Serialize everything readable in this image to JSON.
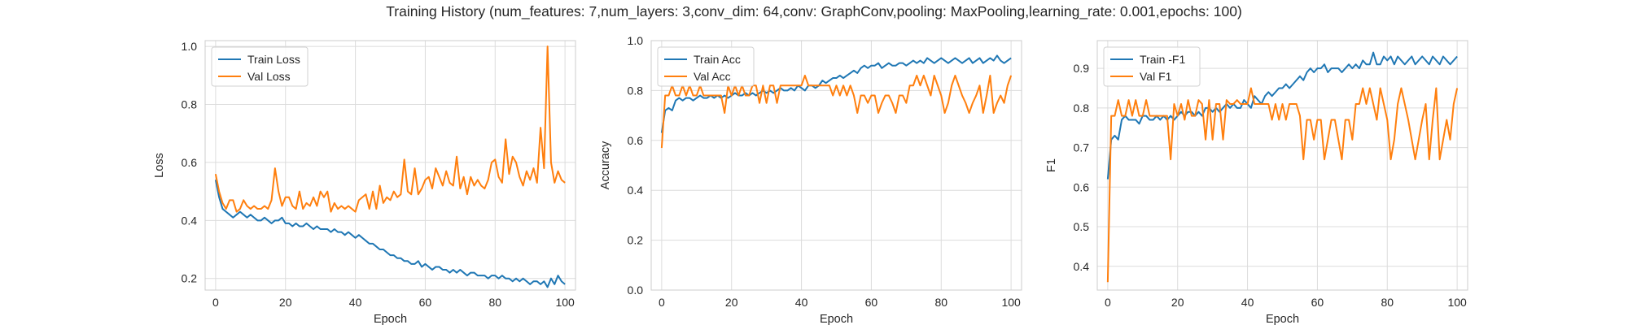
{
  "title": "Training History (num_features: 7,num_layers: 3,conv_dim: 64,conv: GraphConv,pooling: MaxPooling,learning_rate: 0.001,epochs: 100)",
  "colors": {
    "train": "#1f77b4",
    "val": "#ff7f0e",
    "grid": "#dcdcdc",
    "frame": "#cccccc"
  },
  "chart_data": [
    {
      "type": "line",
      "xlabel": "Epoch",
      "ylabel": "Loss",
      "xlim": [
        -3,
        103
      ],
      "ylim": [
        0.16,
        1.02
      ],
      "xticks": [
        0,
        20,
        40,
        60,
        80,
        100
      ],
      "yticks": [
        0.2,
        0.4,
        0.6,
        0.8,
        1.0
      ],
      "ytick_labels": [
        "0.2",
        "0.4",
        "0.6",
        "0.8",
        "1.0"
      ],
      "grid": true,
      "legend": "upper-left",
      "series": [
        {
          "name": "Train Loss",
          "color": "#1f77b4",
          "values": [
            0.54,
            0.48,
            0.44,
            0.43,
            0.42,
            0.41,
            0.42,
            0.43,
            0.42,
            0.41,
            0.42,
            0.41,
            0.4,
            0.4,
            0.41,
            0.4,
            0.39,
            0.4,
            0.4,
            0.41,
            0.39,
            0.39,
            0.38,
            0.39,
            0.38,
            0.38,
            0.39,
            0.38,
            0.37,
            0.38,
            0.37,
            0.37,
            0.37,
            0.36,
            0.37,
            0.36,
            0.36,
            0.35,
            0.36,
            0.35,
            0.34,
            0.35,
            0.34,
            0.33,
            0.32,
            0.32,
            0.31,
            0.3,
            0.3,
            0.29,
            0.28,
            0.28,
            0.27,
            0.27,
            0.26,
            0.26,
            0.25,
            0.25,
            0.26,
            0.24,
            0.25,
            0.24,
            0.23,
            0.24,
            0.24,
            0.23,
            0.23,
            0.22,
            0.23,
            0.22,
            0.23,
            0.22,
            0.21,
            0.22,
            0.22,
            0.21,
            0.21,
            0.21,
            0.2,
            0.21,
            0.21,
            0.2,
            0.21,
            0.2,
            0.2,
            0.19,
            0.2,
            0.19,
            0.2,
            0.19,
            0.18,
            0.19,
            0.19,
            0.18,
            0.19,
            0.17,
            0.2,
            0.18,
            0.21,
            0.19,
            0.18
          ]
        },
        {
          "name": "Val Loss",
          "color": "#ff7f0e",
          "values": [
            0.56,
            0.5,
            0.46,
            0.44,
            0.47,
            0.47,
            0.43,
            0.44,
            0.47,
            0.45,
            0.44,
            0.45,
            0.44,
            0.44,
            0.45,
            0.44,
            0.47,
            0.58,
            0.5,
            0.45,
            0.48,
            0.48,
            0.45,
            0.44,
            0.5,
            0.44,
            0.46,
            0.45,
            0.48,
            0.45,
            0.5,
            0.48,
            0.5,
            0.43,
            0.46,
            0.44,
            0.45,
            0.44,
            0.45,
            0.44,
            0.43,
            0.47,
            0.48,
            0.49,
            0.44,
            0.5,
            0.44,
            0.52,
            0.46,
            0.48,
            0.47,
            0.5,
            0.48,
            0.49,
            0.61,
            0.5,
            0.49,
            0.58,
            0.49,
            0.51,
            0.54,
            0.55,
            0.51,
            0.58,
            0.55,
            0.52,
            0.57,
            0.53,
            0.52,
            0.62,
            0.51,
            0.55,
            0.49,
            0.55,
            0.52,
            0.54,
            0.52,
            0.51,
            0.54,
            0.6,
            0.61,
            0.55,
            0.53,
            0.68,
            0.56,
            0.62,
            0.6,
            0.55,
            0.52,
            0.57,
            0.54,
            0.58,
            0.53,
            0.72,
            0.58,
            1.0,
            0.6,
            0.53,
            0.57,
            0.54,
            0.53
          ]
        }
      ]
    },
    {
      "type": "line",
      "xlabel": "Epoch",
      "ylabel": "Accuracy",
      "xlim": [
        -3,
        103
      ],
      "ylim": [
        0.0,
        1.0
      ],
      "xticks": [
        0,
        20,
        40,
        60,
        80,
        100
      ],
      "yticks": [
        0.0,
        0.2,
        0.4,
        0.6,
        0.8,
        1.0
      ],
      "ytick_labels": [
        "0.0",
        "0.2",
        "0.4",
        "0.6",
        "0.8",
        "1.0"
      ],
      "grid": true,
      "legend": "upper-left",
      "series": [
        {
          "name": "Train Acc",
          "color": "#1f77b4",
          "values": [
            0.63,
            0.72,
            0.73,
            0.72,
            0.76,
            0.77,
            0.76,
            0.77,
            0.77,
            0.76,
            0.77,
            0.78,
            0.77,
            0.77,
            0.78,
            0.77,
            0.78,
            0.77,
            0.78,
            0.77,
            0.78,
            0.79,
            0.78,
            0.78,
            0.79,
            0.78,
            0.79,
            0.78,
            0.79,
            0.8,
            0.79,
            0.8,
            0.79,
            0.8,
            0.81,
            0.8,
            0.8,
            0.81,
            0.8,
            0.82,
            0.81,
            0.8,
            0.82,
            0.82,
            0.81,
            0.82,
            0.84,
            0.83,
            0.84,
            0.85,
            0.85,
            0.86,
            0.85,
            0.86,
            0.87,
            0.88,
            0.87,
            0.89,
            0.9,
            0.89,
            0.9,
            0.9,
            0.91,
            0.89,
            0.9,
            0.91,
            0.9,
            0.9,
            0.91,
            0.91,
            0.9,
            0.91,
            0.92,
            0.91,
            0.92,
            0.91,
            0.93,
            0.92,
            0.91,
            0.92,
            0.93,
            0.92,
            0.91,
            0.92,
            0.93,
            0.92,
            0.91,
            0.92,
            0.93,
            0.91,
            0.92,
            0.93,
            0.91,
            0.92,
            0.93,
            0.92,
            0.94,
            0.92,
            0.91,
            0.92,
            0.93
          ]
        },
        {
          "name": "Val Acc",
          "color": "#ff7f0e",
          "values": [
            0.57,
            0.78,
            0.78,
            0.82,
            0.78,
            0.78,
            0.82,
            0.78,
            0.82,
            0.78,
            0.78,
            0.82,
            0.78,
            0.78,
            0.78,
            0.78,
            0.78,
            0.78,
            0.71,
            0.82,
            0.78,
            0.82,
            0.78,
            0.82,
            0.78,
            0.78,
            0.82,
            0.82,
            0.75,
            0.82,
            0.75,
            0.82,
            0.82,
            0.75,
            0.82,
            0.82,
            0.82,
            0.82,
            0.82,
            0.82,
            0.82,
            0.86,
            0.82,
            0.82,
            0.82,
            0.82,
            0.82,
            0.82,
            0.82,
            0.78,
            0.82,
            0.78,
            0.82,
            0.78,
            0.82,
            0.78,
            0.71,
            0.78,
            0.78,
            0.75,
            0.78,
            0.78,
            0.71,
            0.75,
            0.78,
            0.78,
            0.75,
            0.71,
            0.78,
            0.78,
            0.75,
            0.82,
            0.82,
            0.86,
            0.82,
            0.86,
            0.82,
            0.78,
            0.86,
            0.82,
            0.78,
            0.71,
            0.75,
            0.82,
            0.86,
            0.82,
            0.78,
            0.75,
            0.71,
            0.75,
            0.78,
            0.82,
            0.71,
            0.78,
            0.86,
            0.71,
            0.75,
            0.78,
            0.75,
            0.82,
            0.86
          ]
        }
      ]
    },
    {
      "type": "line",
      "xlabel": "Epoch",
      "ylabel": "F1",
      "xlim": [
        -3,
        103
      ],
      "ylim": [
        0.34,
        0.97
      ],
      "xticks": [
        0,
        20,
        40,
        60,
        80,
        100
      ],
      "yticks": [
        0.4,
        0.5,
        0.6,
        0.7,
        0.8,
        0.9
      ],
      "ytick_labels": [
        "0.4",
        "0.5",
        "0.6",
        "0.7",
        "0.8",
        "0.9"
      ],
      "grid": true,
      "legend": "upper-left",
      "series": [
        {
          "name": "Train -F1",
          "color": "#1f77b4",
          "values": [
            0.62,
            0.72,
            0.73,
            0.72,
            0.77,
            0.78,
            0.77,
            0.77,
            0.77,
            0.76,
            0.78,
            0.78,
            0.77,
            0.77,
            0.78,
            0.77,
            0.78,
            0.77,
            0.78,
            0.77,
            0.78,
            0.79,
            0.78,
            0.79,
            0.79,
            0.78,
            0.79,
            0.78,
            0.8,
            0.8,
            0.79,
            0.8,
            0.79,
            0.8,
            0.81,
            0.8,
            0.81,
            0.8,
            0.8,
            0.82,
            0.81,
            0.8,
            0.83,
            0.82,
            0.81,
            0.83,
            0.84,
            0.83,
            0.84,
            0.85,
            0.85,
            0.86,
            0.85,
            0.86,
            0.87,
            0.88,
            0.87,
            0.89,
            0.9,
            0.89,
            0.9,
            0.9,
            0.91,
            0.89,
            0.9,
            0.9,
            0.9,
            0.89,
            0.9,
            0.91,
            0.9,
            0.91,
            0.9,
            0.92,
            0.91,
            0.91,
            0.94,
            0.91,
            0.91,
            0.93,
            0.92,
            0.93,
            0.91,
            0.93,
            0.92,
            0.91,
            0.92,
            0.93,
            0.91,
            0.92,
            0.93,
            0.92,
            0.91,
            0.93,
            0.92,
            0.91,
            0.93,
            0.92,
            0.91,
            0.92,
            0.93
          ]
        },
        {
          "name": "Val F1",
          "color": "#ff7f0e",
          "values": [
            0.36,
            0.78,
            0.78,
            0.82,
            0.78,
            0.78,
            0.82,
            0.78,
            0.82,
            0.78,
            0.78,
            0.82,
            0.78,
            0.78,
            0.78,
            0.78,
            0.78,
            0.78,
            0.67,
            0.81,
            0.78,
            0.81,
            0.77,
            0.82,
            0.78,
            0.78,
            0.82,
            0.81,
            0.72,
            0.82,
            0.72,
            0.81,
            0.81,
            0.72,
            0.82,
            0.81,
            0.81,
            0.82,
            0.81,
            0.81,
            0.81,
            0.85,
            0.81,
            0.81,
            0.81,
            0.81,
            0.81,
            0.77,
            0.81,
            0.77,
            0.81,
            0.77,
            0.81,
            0.81,
            0.81,
            0.78,
            0.67,
            0.77,
            0.77,
            0.72,
            0.77,
            0.77,
            0.67,
            0.72,
            0.77,
            0.77,
            0.72,
            0.67,
            0.77,
            0.77,
            0.72,
            0.81,
            0.81,
            0.85,
            0.81,
            0.85,
            0.81,
            0.77,
            0.85,
            0.81,
            0.77,
            0.67,
            0.72,
            0.81,
            0.85,
            0.81,
            0.77,
            0.72,
            0.67,
            0.72,
            0.77,
            0.81,
            0.67,
            0.77,
            0.85,
            0.67,
            0.72,
            0.77,
            0.72,
            0.81,
            0.85
          ]
        }
      ]
    }
  ]
}
